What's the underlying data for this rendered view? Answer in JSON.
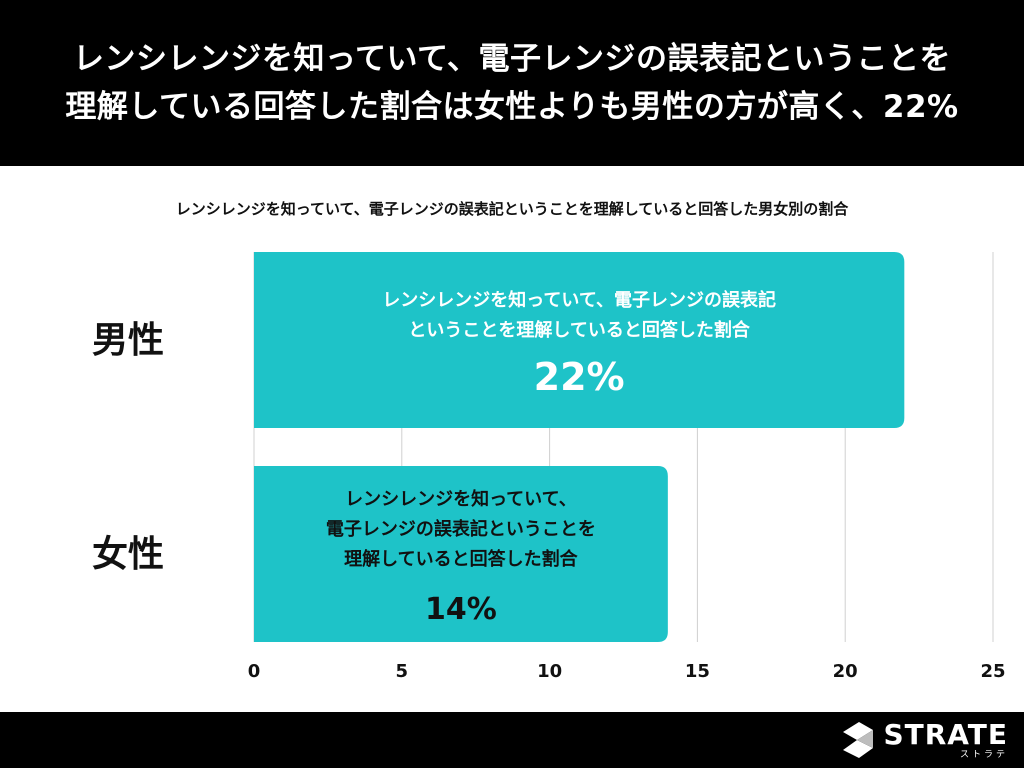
{
  "header": {
    "title_line1": "レンシレンジを知っていて、電子レンジの誤表記ということを",
    "title_line2": "理解している回答した割合は女性よりも男性の方が高く、22%"
  },
  "footer": {
    "logo_text": "STRATE",
    "logo_sub": "ストラテ"
  },
  "colors": {
    "bar": "#1ec3c8",
    "grid": "#d0d0d0",
    "background_header": "#000000"
  },
  "chart_data": {
    "type": "bar",
    "orientation": "horizontal",
    "title": "レンシレンジを知っていて、電子レンジの誤表記ということを理解していると回答した男女別の割合",
    "categories": [
      "男性",
      "女性"
    ],
    "values": [
      22,
      14
    ],
    "value_labels": [
      "22%",
      "14%"
    ],
    "bar_annotations": [
      [
        "レンシレンジを知っていて、電子レンジの誤表記",
        "ということを理解していると回答した割合"
      ],
      [
        "レンシレンジを知っていて、",
        "電子レンジの誤表記ということを",
        "理解していると回答した割合"
      ]
    ],
    "xlim": [
      0,
      25
    ],
    "xticks": [
      0,
      5,
      10,
      15,
      20,
      25
    ],
    "xlabel": "",
    "ylabel": "",
    "grid": true
  }
}
